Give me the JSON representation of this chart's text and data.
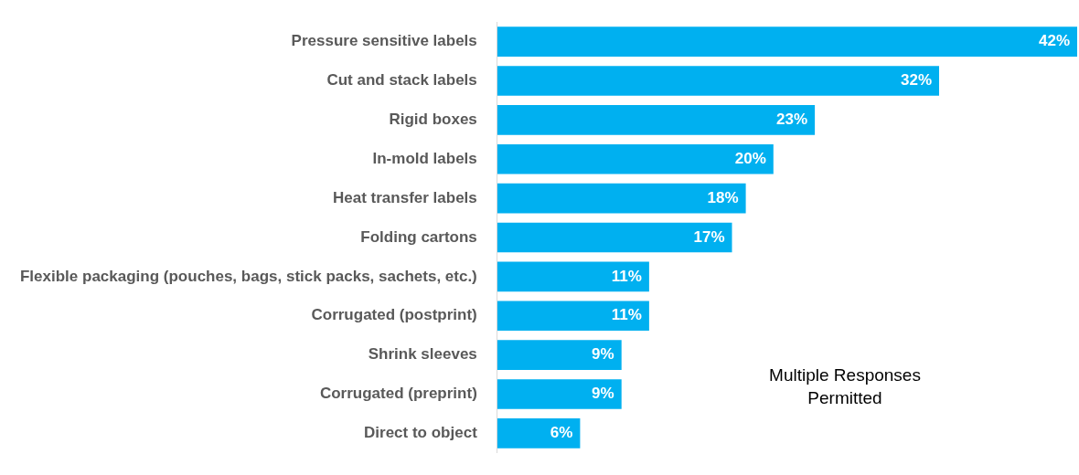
{
  "chart_data": {
    "type": "bar",
    "orientation": "horizontal",
    "categories": [
      "Pressure sensitive labels",
      "Cut and stack labels",
      "Rigid boxes",
      "In-mold labels",
      "Heat transfer labels",
      "Folding cartons",
      "Flexible packaging (pouches, bags, stick packs, sachets, etc.)",
      "Corrugated (postprint)",
      "Shrink sleeves",
      "Corrugated (preprint)",
      "Direct to object"
    ],
    "values": [
      42,
      32,
      23,
      20,
      18,
      17,
      11,
      11,
      9,
      9,
      6
    ],
    "value_labels": [
      "42%",
      "32%",
      "23%",
      "20%",
      "18%",
      "17%",
      "11%",
      "11%",
      "9%",
      "9%",
      "6%"
    ],
    "color": "#00b0f0",
    "annotations": [
      "Multiple Responses Permitted"
    ]
  }
}
